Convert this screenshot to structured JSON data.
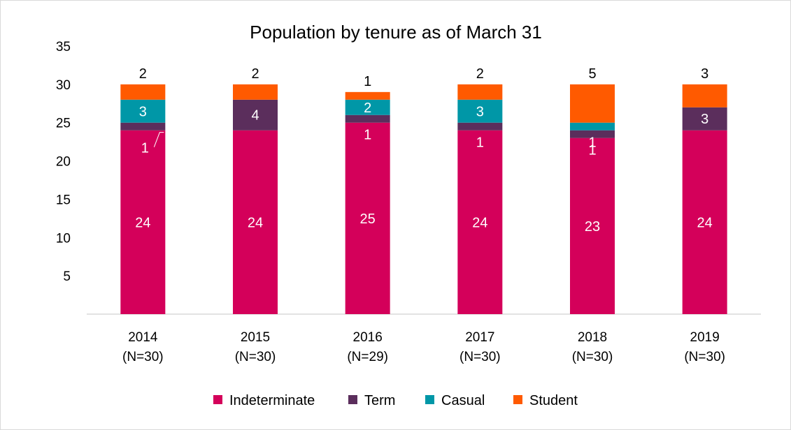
{
  "chart_data": {
    "type": "bar",
    "stacked": true,
    "title": "Population by tenure as of March 31",
    "xlabel": "",
    "ylabel": "",
    "ylim": [
      0,
      35
    ],
    "yticks": [
      5,
      10,
      15,
      20,
      25,
      30,
      35
    ],
    "grid": false,
    "legend_position": "bottom",
    "categories": [
      [
        "2014",
        "(N=30)"
      ],
      [
        "2015",
        "(N=30)"
      ],
      [
        "2016",
        "(N=29)"
      ],
      [
        "2017",
        "(N=30)"
      ],
      [
        "2018",
        "(N=30)"
      ],
      [
        "2019",
        "(N=30)"
      ]
    ],
    "series": [
      {
        "name": "Indeterminate",
        "color": "#d4005a",
        "label_color": "#ffffff",
        "values": [
          24,
          24,
          25,
          24,
          23,
          24
        ]
      },
      {
        "name": "Term",
        "color": "#5b2e5c",
        "label_color": "#ffffff",
        "values": [
          1,
          4,
          1,
          1,
          1,
          3
        ]
      },
      {
        "name": "Casual",
        "color": "#0097a7",
        "label_color": "#ffffff",
        "values": [
          3,
          0,
          2,
          3,
          1,
          0
        ]
      },
      {
        "name": "Student",
        "color": "#ff5a00",
        "label_color": "#000000",
        "values": [
          2,
          2,
          1,
          2,
          5,
          3
        ]
      }
    ]
  }
}
